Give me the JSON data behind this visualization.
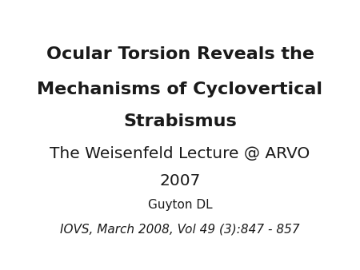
{
  "background_color": "#ffffff",
  "title_line1": "Ocular Torsion Reveals the",
  "title_line2": "Mechanisms of Cyclovertical",
  "title_line3": "Strabismus",
  "subtitle_line1": "The Weisenfeld Lecture @ ARVO",
  "subtitle_line2": "2007",
  "author": "Guyton DL",
  "citation": "IOVS, March 2008, Vol 49 (3):847 - 857",
  "title_fontsize": 16,
  "subtitle_fontsize": 14.5,
  "author_fontsize": 11,
  "citation_fontsize": 11,
  "text_color": "#1a1a1a",
  "fig_width": 4.5,
  "fig_height": 3.38,
  "dpi": 100
}
